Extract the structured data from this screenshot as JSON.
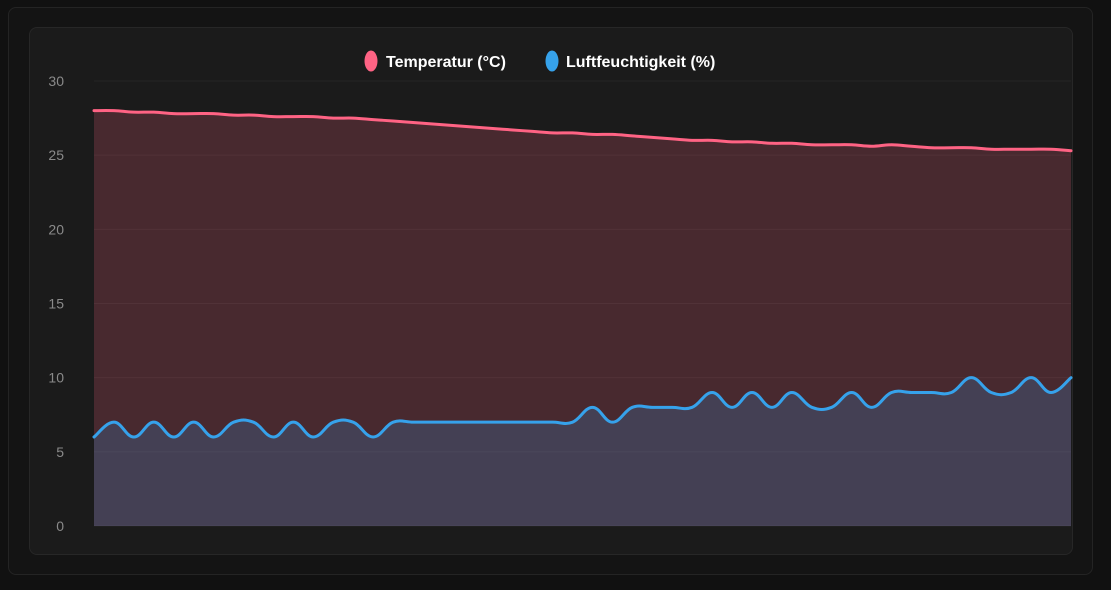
{
  "chart_data": {
    "type": "area",
    "title": "",
    "xlabel": "",
    "ylabel": "",
    "ylim": [
      0,
      30
    ],
    "yticks": [
      "0",
      "5",
      "10",
      "15",
      "20",
      "25",
      "30"
    ],
    "grid": true,
    "legend_position": "top",
    "x": [
      0,
      1,
      2,
      3,
      4,
      5,
      6,
      7,
      8,
      9,
      10,
      11,
      12,
      13,
      14,
      15,
      16,
      17,
      18,
      19,
      20,
      21,
      22,
      23,
      24,
      25,
      26,
      27,
      28,
      29,
      30,
      31,
      32,
      33,
      34,
      35,
      36,
      37,
      38,
      39,
      40,
      41,
      42,
      43,
      44,
      45,
      46,
      47,
      48,
      49
    ],
    "series": [
      {
        "name": "Temperatur (°C)",
        "color": "#ff6384",
        "fill": "rgba(255, 99, 132, 0.2)",
        "values": [
          28.0,
          28.0,
          27.9,
          27.9,
          27.8,
          27.8,
          27.8,
          27.7,
          27.7,
          27.6,
          27.6,
          27.6,
          27.5,
          27.5,
          27.4,
          27.3,
          27.2,
          27.1,
          27.0,
          26.9,
          26.8,
          26.7,
          26.6,
          26.5,
          26.5,
          26.4,
          26.4,
          26.3,
          26.2,
          26.1,
          26.0,
          26.0,
          25.9,
          25.9,
          25.8,
          25.8,
          25.7,
          25.7,
          25.7,
          25.6,
          25.7,
          25.6,
          25.5,
          25.5,
          25.5,
          25.4,
          25.4,
          25.4,
          25.4,
          25.3
        ]
      },
      {
        "name": "Luftfeuchtigkeit (%)",
        "color": "#36a2eb",
        "fill": "rgba(54, 162, 235, 0.2)",
        "values": [
          6,
          7,
          6,
          7,
          6,
          7,
          6,
          7,
          7,
          6,
          7,
          6,
          7,
          7,
          6,
          7,
          7,
          7,
          7,
          7,
          7,
          7,
          7,
          7,
          7,
          8,
          7,
          8,
          8,
          8,
          8,
          9,
          8,
          9,
          8,
          9,
          8,
          8,
          9,
          8,
          9,
          9,
          9,
          9,
          10,
          9,
          9,
          10,
          9,
          10
        ]
      }
    ]
  }
}
